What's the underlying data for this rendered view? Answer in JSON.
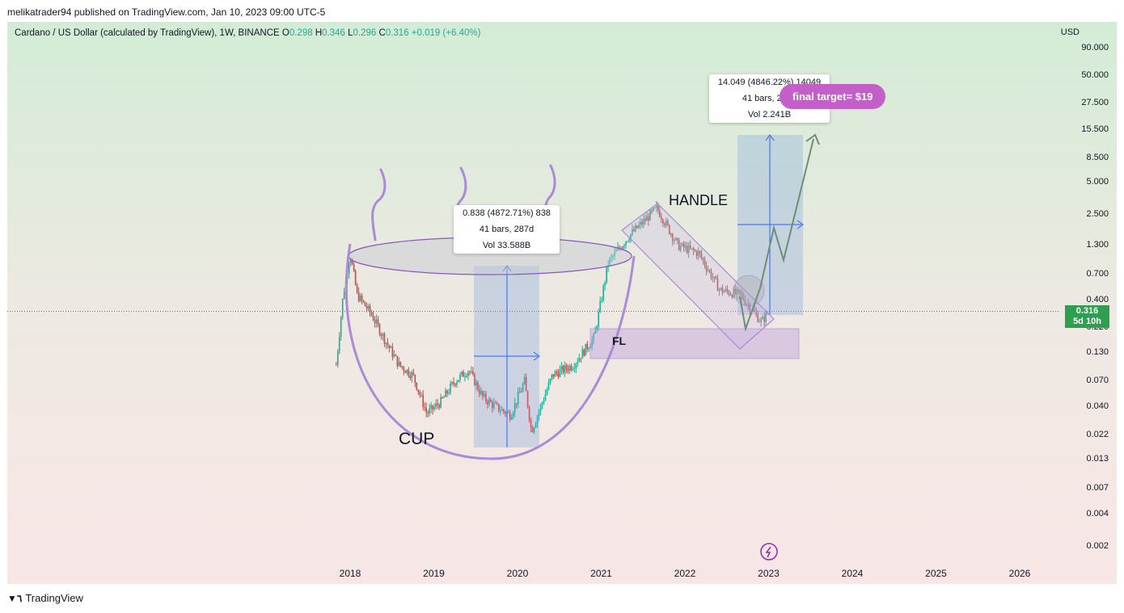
{
  "header": {
    "published": "melikatrader94 published on TradingView.com, Jan 10, 2023 09:00 UTC-5"
  },
  "legend": {
    "symbol": "Cardano / US Dollar (calculated by TradingView), 1W, BINANCE",
    "o_label": "O",
    "o": "0.298",
    "h_label": "H",
    "h": "0.346",
    "l_label": "L",
    "l": "0.296",
    "c_label": "C",
    "c": "0.316",
    "change": "+0.019 (+6.40%)"
  },
  "axis": {
    "currency": "USD",
    "y_ticks": [
      "90.000",
      "50.000",
      "27.500",
      "15.500",
      "8.500",
      "5.000",
      "2.500",
      "1.300",
      "0.700",
      "0.400",
      "0.220",
      "0.130",
      "0.070",
      "0.040",
      "0.022",
      "0.013",
      "0.007",
      "0.004",
      "0.002"
    ],
    "x_ticks": [
      "2018",
      "2019",
      "2020",
      "2021",
      "2022",
      "2023",
      "2024",
      "2025",
      "2026"
    ]
  },
  "price_tag": {
    "price": "0.316",
    "countdown": "5d 10h",
    "color": "#2e9e4f"
  },
  "annotations": {
    "cup": "CUP",
    "handle": "HANDLE",
    "fl": "FL",
    "target": "final target= $19",
    "box1": {
      "line1": "0.838 (4872.71%) 838",
      "line2": "41 bars, 287d",
      "line3": "Vol 33.588B"
    },
    "box2": {
      "line1": "14.049 (4846.22%) 14049",
      "line2": "41 bars, 287d",
      "line3": "Vol 2.241B"
    }
  },
  "colors": {
    "up": "#22ab94",
    "down": "#e0403a",
    "drawing": "#a98bd6",
    "target_bubble": "#c45fc9"
  },
  "footer": {
    "brand": "TradingView"
  },
  "chart_data": {
    "type": "candlestick",
    "title": "Cardano / US Dollar (calculated by TradingView), 1W, BINANCE",
    "y_scale": "log",
    "ylim": [
      0.002,
      90
    ],
    "x_range": [
      "2017-10",
      "2026-06"
    ],
    "series": [
      {
        "name": "ADAUSD",
        "points": [
          [
            "2017-11",
            0.1
          ],
          [
            "2017-12",
            0.45
          ],
          [
            "2018-01",
            1.1
          ],
          [
            "2018-02",
            0.45
          ],
          [
            "2018-04",
            0.3
          ],
          [
            "2018-06",
            0.17
          ],
          [
            "2018-08",
            0.1
          ],
          [
            "2018-10",
            0.08
          ],
          [
            "2018-12",
            0.035
          ],
          [
            "2019-02",
            0.045
          ],
          [
            "2019-04",
            0.07
          ],
          [
            "2019-06",
            0.09
          ],
          [
            "2019-08",
            0.05
          ],
          [
            "2019-10",
            0.04
          ],
          [
            "2019-12",
            0.034
          ],
          [
            "2020-02",
            0.07
          ],
          [
            "2020-03",
            0.024
          ],
          [
            "2020-06",
            0.08
          ],
          [
            "2020-09",
            0.1
          ],
          [
            "2020-12",
            0.18
          ],
          [
            "2021-02",
            0.9
          ],
          [
            "2021-05",
            1.6
          ],
          [
            "2021-09",
            2.9
          ],
          [
            "2021-12",
            1.3
          ],
          [
            "2022-03",
            1.1
          ],
          [
            "2022-06",
            0.5
          ],
          [
            "2022-09",
            0.45
          ],
          [
            "2022-12",
            0.25
          ],
          [
            "2023-01",
            0.316
          ]
        ]
      }
    ],
    "last": {
      "open": 0.298,
      "high": 0.346,
      "low": 0.296,
      "close": 0.316,
      "change": 0.019,
      "change_pct": 6.4
    },
    "measurements": [
      {
        "value": 0.838,
        "pct": 4872.71,
        "bars": 41,
        "days": 287,
        "volume": "33.588B"
      },
      {
        "value": 14.049,
        "pct": 4846.22,
        "bars": 41,
        "days": 287,
        "volume": "2.241B"
      }
    ],
    "target": 19
  }
}
